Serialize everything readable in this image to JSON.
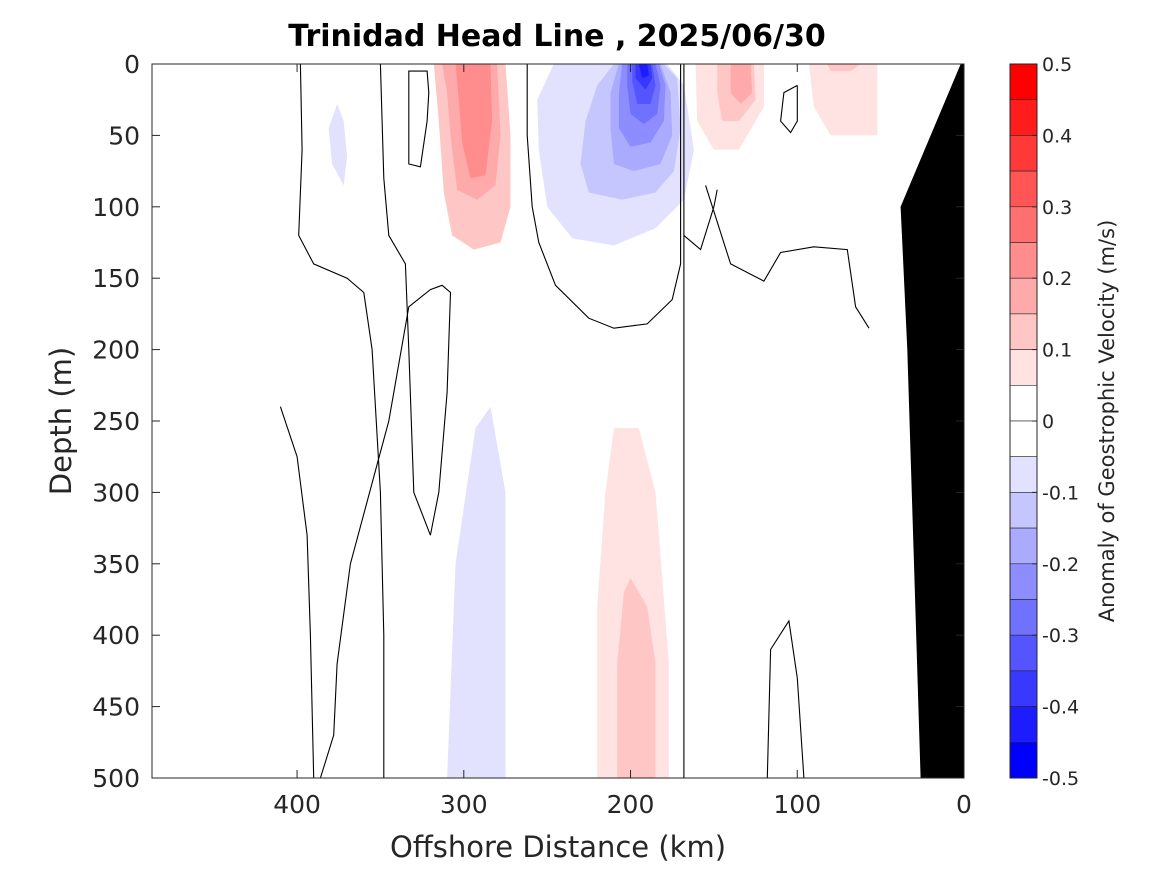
{
  "chart_data": {
    "type": "contour",
    "title": "Trinidad Head Line , 2025/06/30",
    "xlabel": "Offshore Distance (km)",
    "ylabel": "Depth (m)",
    "xlim": [
      487,
      0
    ],
    "ylim": [
      0,
      500
    ],
    "x_ticks": [
      400,
      300,
      200,
      100,
      0
    ],
    "y_ticks": [
      0,
      50,
      100,
      150,
      200,
      250,
      300,
      350,
      400,
      450,
      500
    ],
    "x_reversed": true,
    "y_reversed": true,
    "colorbar": {
      "label": "Anomaly of Geostrophic Velocity (m/s)",
      "ticks": [
        0.5,
        0.4,
        0.3,
        0.2,
        0.1,
        0,
        -0.1,
        -0.2,
        -0.3,
        -0.4,
        -0.5
      ],
      "levels": [
        {
          "from": 0.45,
          "to": 0.5,
          "color": "#ff0000"
        },
        {
          "from": 0.4,
          "to": 0.45,
          "color": "#ff1c1c"
        },
        {
          "from": 0.35,
          "to": 0.4,
          "color": "#ff3838"
        },
        {
          "from": 0.3,
          "to": 0.35,
          "color": "#ff5555"
        },
        {
          "from": 0.25,
          "to": 0.3,
          "color": "#ff7171"
        },
        {
          "from": 0.2,
          "to": 0.25,
          "color": "#ff8d8d"
        },
        {
          "from": 0.15,
          "to": 0.2,
          "color": "#ffaaaa"
        },
        {
          "from": 0.1,
          "to": 0.15,
          "color": "#ffc6c6"
        },
        {
          "from": 0.05,
          "to": 0.1,
          "color": "#ffe2e2"
        },
        {
          "from": 0.0,
          "to": 0.05,
          "color": "#ffffff"
        },
        {
          "from": -0.05,
          "to": 0.0,
          "color": "#ffffff"
        },
        {
          "from": -0.1,
          "to": -0.05,
          "color": "#e2e2ff"
        },
        {
          "from": -0.15,
          "to": -0.1,
          "color": "#c6c6ff"
        },
        {
          "from": -0.2,
          "to": -0.15,
          "color": "#aaaaff"
        },
        {
          "from": -0.25,
          "to": -0.2,
          "color": "#8d8dff"
        },
        {
          "from": -0.3,
          "to": -0.25,
          "color": "#7171ff"
        },
        {
          "from": -0.35,
          "to": -0.3,
          "color": "#5555ff"
        },
        {
          "from": -0.4,
          "to": -0.35,
          "color": "#3838ff"
        },
        {
          "from": -0.45,
          "to": -0.4,
          "color": "#1c1cff"
        },
        {
          "from": -0.5,
          "to": -0.45,
          "color": "#0000ff"
        }
      ]
    },
    "filled_regions": [
      {
        "level": 0.1,
        "points": [
          [
            318,
            0
          ],
          [
            297,
            0
          ],
          [
            275,
            0
          ],
          [
            272,
            50
          ],
          [
            272,
            100
          ],
          [
            278,
            125
          ],
          [
            294,
            130
          ],
          [
            307,
            120
          ],
          [
            312,
            90
          ],
          [
            315,
            40
          ]
        ]
      },
      {
        "level": 0.15,
        "points": [
          [
            313,
            0
          ],
          [
            296,
            0
          ],
          [
            280,
            0
          ],
          [
            278,
            50
          ],
          [
            281,
            85
          ],
          [
            292,
            95
          ],
          [
            304,
            88
          ],
          [
            308,
            50
          ],
          [
            310,
            20
          ]
        ]
      },
      {
        "level": 0.2,
        "points": [
          [
            305,
            0
          ],
          [
            293,
            0
          ],
          [
            284,
            0
          ],
          [
            283,
            40
          ],
          [
            287,
            78
          ],
          [
            296,
            80
          ],
          [
            301,
            55
          ],
          [
            303,
            25
          ]
        ]
      },
      {
        "level": -0.05,
        "points": [
          [
            246,
            0
          ],
          [
            225,
            0
          ],
          [
            205,
            0
          ],
          [
            190,
            0
          ],
          [
            178,
            0
          ],
          [
            168,
            15
          ],
          [
            162,
            60
          ],
          [
            168,
            95
          ],
          [
            185,
            115
          ],
          [
            210,
            127
          ],
          [
            235,
            122
          ],
          [
            250,
            100
          ],
          [
            255,
            60
          ],
          [
            256,
            25
          ]
        ]
      },
      {
        "level": -0.1,
        "points": [
          [
            210,
            0
          ],
          [
            195,
            0
          ],
          [
            180,
            0
          ],
          [
            172,
            10
          ],
          [
            170,
            45
          ],
          [
            174,
            75
          ],
          [
            185,
            90
          ],
          [
            205,
            95
          ],
          [
            225,
            90
          ],
          [
            230,
            70
          ],
          [
            227,
            40
          ],
          [
            220,
            15
          ]
        ]
      },
      {
        "level": -0.15,
        "points": [
          [
            207,
            0
          ],
          [
            195,
            0
          ],
          [
            182,
            0
          ],
          [
            176,
            20
          ],
          [
            175,
            50
          ],
          [
            182,
            70
          ],
          [
            198,
            75
          ],
          [
            210,
            70
          ],
          [
            212,
            45
          ],
          [
            212,
            20
          ]
        ]
      },
      {
        "level": -0.2,
        "points": [
          [
            205,
            0
          ],
          [
            194,
            0
          ],
          [
            183,
            0
          ],
          [
            179,
            15
          ],
          [
            180,
            40
          ],
          [
            188,
            55
          ],
          [
            200,
            58
          ],
          [
            207,
            45
          ],
          [
            207,
            20
          ]
        ]
      },
      {
        "level": -0.25,
        "points": [
          [
            202,
            0
          ],
          [
            193,
            0
          ],
          [
            185,
            0
          ],
          [
            182,
            15
          ],
          [
            184,
            35
          ],
          [
            192,
            42
          ],
          [
            200,
            35
          ],
          [
            202,
            15
          ]
        ]
      },
      {
        "level": -0.3,
        "points": [
          [
            199,
            0
          ],
          [
            192,
            0
          ],
          [
            187,
            0
          ],
          [
            185,
            15
          ],
          [
            188,
            28
          ],
          [
            196,
            28
          ],
          [
            199,
            12
          ]
        ]
      },
      {
        "level": -0.35,
        "points": [
          [
            197,
            0
          ],
          [
            191,
            0
          ],
          [
            188,
            0
          ],
          [
            187,
            10
          ],
          [
            191,
            18
          ],
          [
            197,
            10
          ]
        ]
      },
      {
        "level": -0.4,
        "points": [
          [
            195,
            0
          ],
          [
            190,
            0
          ],
          [
            189,
            8
          ],
          [
            193,
            10
          ]
        ]
      },
      {
        "level": 0.05,
        "points": [
          [
            161,
            0
          ],
          [
            150,
            0
          ],
          [
            135,
            0
          ],
          [
            120,
            0
          ],
          [
            120,
            30
          ],
          [
            135,
            60
          ],
          [
            150,
            60
          ],
          [
            160,
            40
          ]
        ]
      },
      {
        "level": 0.1,
        "points": [
          [
            148,
            0
          ],
          [
            135,
            0
          ],
          [
            126,
            0
          ],
          [
            125,
            25
          ],
          [
            135,
            40
          ],
          [
            145,
            40
          ],
          [
            148,
            20
          ]
        ]
      },
      {
        "level": 0.15,
        "points": [
          [
            140,
            0
          ],
          [
            128,
            0
          ],
          [
            127,
            20
          ],
          [
            134,
            28
          ],
          [
            140,
            20
          ]
        ]
      },
      {
        "level": 0.05,
        "points": [
          [
            93,
            0
          ],
          [
            75,
            0
          ],
          [
            52,
            0
          ],
          [
            52,
            50
          ],
          [
            80,
            50
          ],
          [
            90,
            30
          ]
        ]
      },
      {
        "level": 0.1,
        "points": [
          [
            82,
            0
          ],
          [
            70,
            0
          ],
          [
            62,
            0
          ],
          [
            68,
            5
          ],
          [
            80,
            5
          ]
        ]
      },
      {
        "level": -0.05,
        "points": [
          [
            376,
            28
          ],
          [
            372,
            40
          ],
          [
            370,
            65
          ],
          [
            372,
            85
          ],
          [
            379,
            70
          ],
          [
            381,
            45
          ]
        ]
      },
      {
        "level": -0.05,
        "points": [
          [
            284,
            240
          ],
          [
            275,
            300
          ],
          [
            275,
            500
          ],
          [
            290,
            500
          ],
          [
            310,
            500
          ],
          [
            305,
            350
          ],
          [
            293,
            255
          ]
        ]
      },
      {
        "level": 0.05,
        "points": [
          [
            210,
            255
          ],
          [
            195,
            255
          ],
          [
            185,
            300
          ],
          [
            177,
            420
          ],
          [
            177,
            500
          ],
          [
            200,
            500
          ],
          [
            220,
            500
          ],
          [
            220,
            380
          ],
          [
            215,
            300
          ]
        ]
      },
      {
        "level": 0.1,
        "points": [
          [
            200,
            360
          ],
          [
            190,
            380
          ],
          [
            185,
            420
          ],
          [
            185,
            500
          ],
          [
            200,
            500
          ],
          [
            208,
            500
          ],
          [
            208,
            420
          ],
          [
            204,
            370
          ]
        ]
      }
    ],
    "zero_contours": [
      [
        [
          398,
          0
        ],
        [
          397,
          60
        ],
        [
          399,
          120
        ],
        [
          390,
          140
        ],
        [
          370,
          150
        ],
        [
          360,
          160
        ],
        [
          355,
          200
        ],
        [
          350,
          300
        ],
        [
          348,
          400
        ],
        [
          348,
          500
        ]
      ],
      [
        [
          350,
          0
        ],
        [
          348,
          80
        ],
        [
          345,
          120
        ],
        [
          335,
          140
        ],
        [
          333,
          200
        ],
        [
          330,
          300
        ],
        [
          320,
          330
        ]
      ],
      [
        [
          320,
          330
        ],
        [
          315,
          300
        ],
        [
          310,
          230
        ],
        [
          308,
          160
        ],
        [
          313,
          155
        ],
        [
          320,
          158
        ],
        [
          333,
          170
        ],
        [
          345,
          250
        ],
        [
          368,
          350
        ],
        [
          376,
          420
        ],
        [
          378,
          470
        ],
        [
          386,
          500
        ]
      ],
      [
        [
          410,
          240
        ],
        [
          400,
          275
        ],
        [
          394,
          330
        ],
        [
          392,
          400
        ],
        [
          390,
          500
        ]
      ],
      [
        [
          333,
          25
        ],
        [
          333,
          70
        ],
        [
          326,
          72
        ],
        [
          322,
          40
        ],
        [
          321,
          20
        ],
        [
          322,
          5
        ],
        [
          333,
          5
        ],
        [
          333,
          25
        ]
      ],
      [
        [
          262,
          0
        ],
        [
          262,
          50
        ],
        [
          259,
          100
        ],
        [
          255,
          125
        ],
        [
          245,
          155
        ],
        [
          225,
          178
        ],
        [
          210,
          185
        ],
        [
          190,
          182
        ],
        [
          175,
          165
        ],
        [
          170,
          140
        ],
        [
          170,
          0
        ]
      ],
      [
        [
          155,
          85
        ],
        [
          140,
          140
        ],
        [
          120,
          152
        ],
        [
          110,
          132
        ],
        [
          90,
          128
        ],
        [
          70,
          130
        ],
        [
          65,
          170
        ],
        [
          57,
          185
        ]
      ],
      [
        [
          168,
          0
        ],
        [
          168,
          120
        ],
        [
          168,
          250
        ],
        [
          168,
          500
        ]
      ],
      [
        [
          168,
          120
        ],
        [
          158,
          130
        ],
        [
          150,
          100
        ],
        [
          148,
          88
        ]
      ],
      [
        [
          100,
          15
        ],
        [
          108,
          20
        ],
        [
          110,
          40
        ],
        [
          104,
          48
        ],
        [
          100,
          40
        ],
        [
          100,
          15
        ]
      ],
      [
        [
          118,
          500
        ],
        [
          116,
          410
        ],
        [
          105,
          390
        ],
        [
          100,
          430
        ],
        [
          96,
          500
        ]
      ]
    ],
    "land": [
      [
        0,
        0
      ],
      [
        0,
        500
      ],
      [
        26,
        500
      ],
      [
        30,
        350
      ],
      [
        34,
        200
      ],
      [
        38,
        100
      ],
      [
        2,
        0
      ]
    ]
  }
}
